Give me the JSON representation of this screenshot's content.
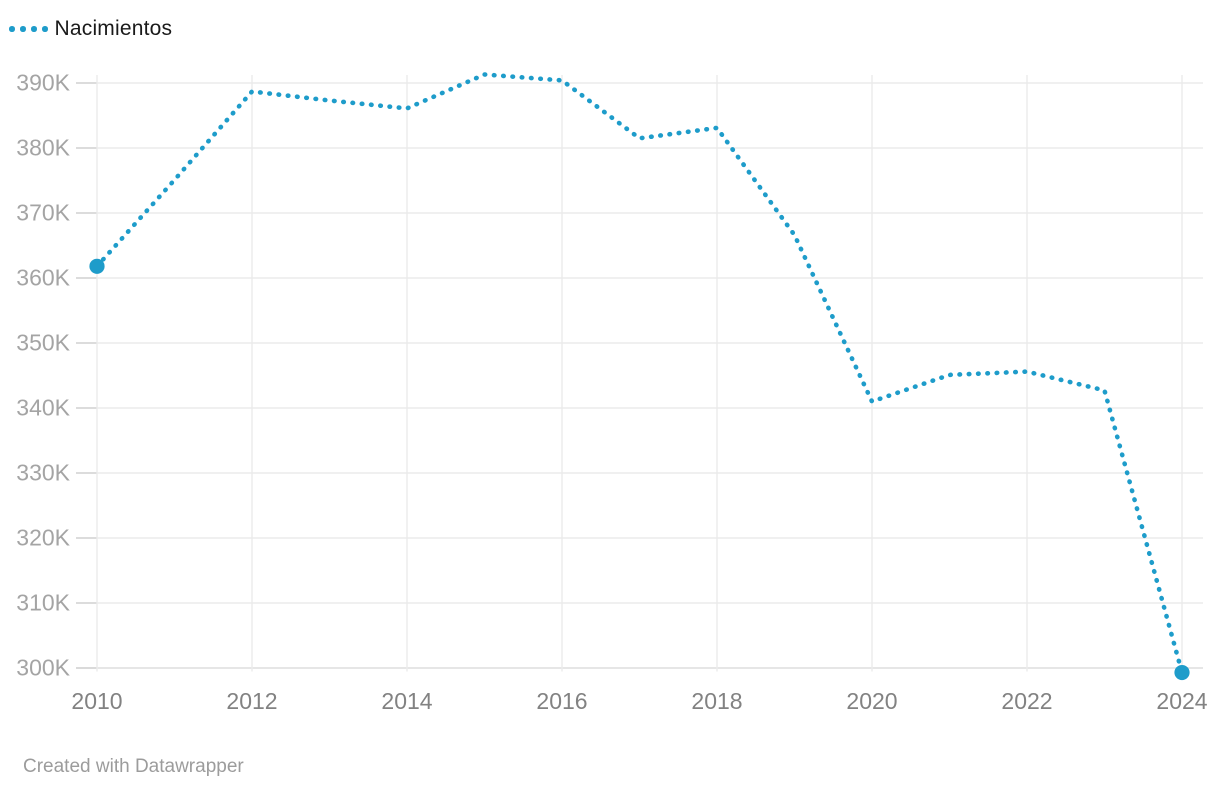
{
  "legend": {
    "items": [
      {
        "label": "Nacimientos",
        "style": "dotted",
        "color": "#1e9cca"
      }
    ]
  },
  "footer": {
    "text": "Created with Datawrapper"
  },
  "colors": {
    "accent": "#1e9cca",
    "grid": "#ebebeb",
    "grid_tick": "#d4d4d4",
    "axis_line": "#dedede",
    "y_tick_label": "#a4a4a4",
    "x_tick_label": "#828282",
    "legend_text": "#1a1a1a",
    "footer_text": "#9c9c9c",
    "background": "#ffffff"
  },
  "chart_data": {
    "type": "line",
    "title": "",
    "xlabel": "",
    "ylabel": "",
    "grid": true,
    "legend_position": "top-left",
    "xlim": [
      2010,
      2024
    ],
    "ylim": [
      300000,
      390000
    ],
    "x": [
      2010,
      2011,
      2012,
      2013,
      2014,
      2015,
      2016,
      2017,
      2018,
      2019,
      2020,
      2021,
      2022,
      2023,
      2024
    ],
    "x_tick_years": [
      2010,
      2012,
      2014,
      2016,
      2018,
      2020,
      2022,
      2024
    ],
    "x_tick_labels": [
      "2010",
      "2012",
      "2014",
      "2016",
      "2018",
      "2020",
      "2022",
      "2024"
    ],
    "y_tick_values": [
      300000,
      310000,
      320000,
      330000,
      340000,
      350000,
      360000,
      370000,
      380000,
      390000
    ],
    "y_tick_labels": [
      "300K",
      "310K",
      "320K",
      "330K",
      "340K",
      "350K",
      "360K",
      "370K",
      "380K",
      "390K"
    ],
    "series": [
      {
        "name": "Nacimientos",
        "style": "dotted",
        "color": "#1e9cca",
        "endpoint_markers": true,
        "values": [
          361800,
          375100,
          388700,
          387300,
          386100,
          391300,
          390400,
          381500,
          383100,
          366600,
          341000,
          345100,
          345600,
          342700,
          299300
        ]
      }
    ]
  }
}
